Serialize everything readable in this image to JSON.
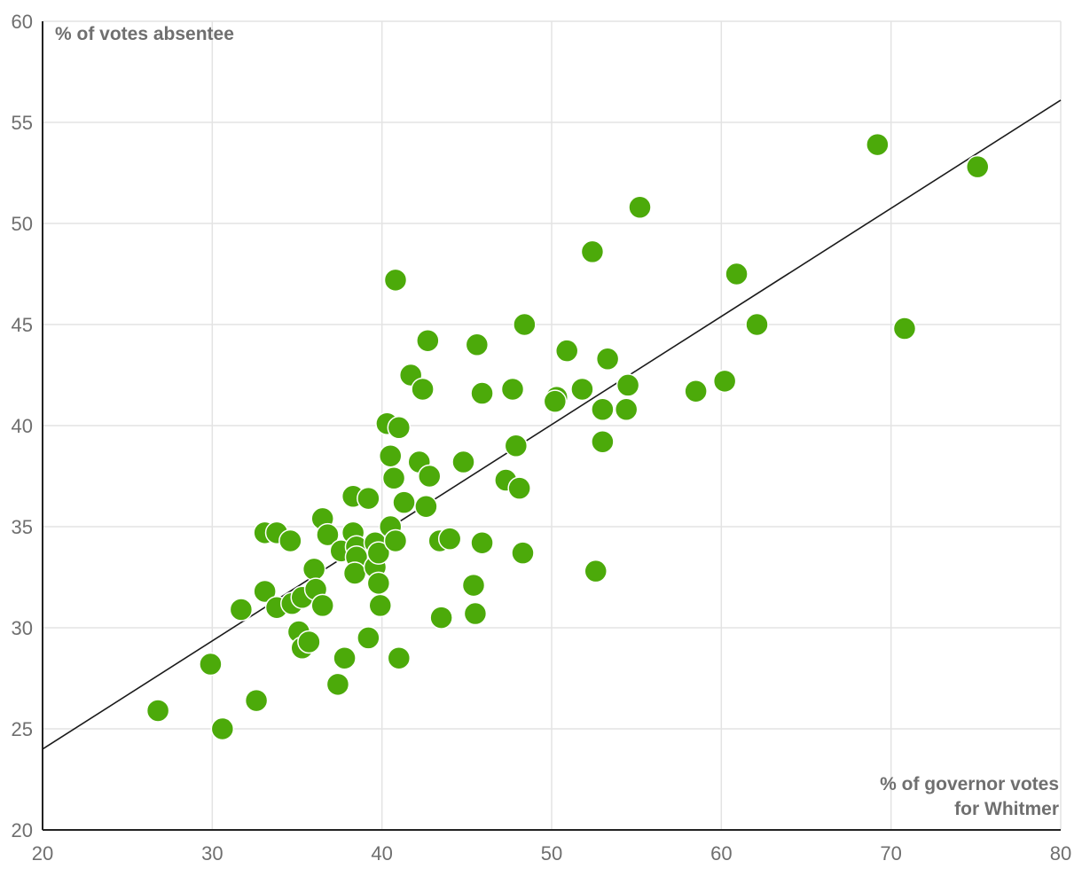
{
  "chart_data": {
    "type": "scatter",
    "xlabel_lines": [
      "% of governor votes",
      "for Whitmer"
    ],
    "ylabel": "% of votes absentee",
    "xlim": [
      20,
      80
    ],
    "ylim": [
      20,
      60
    ],
    "x_ticks": [
      20,
      30,
      40,
      50,
      60,
      70,
      80
    ],
    "y_ticks": [
      20,
      25,
      30,
      35,
      40,
      45,
      50,
      55,
      60
    ],
    "grid": true,
    "point_color": "#4caa0a",
    "trend_line": {
      "x": [
        20,
        80
      ],
      "y": [
        24.0,
        56.1
      ]
    },
    "points": [
      {
        "x": 26.8,
        "y": 25.9
      },
      {
        "x": 29.9,
        "y": 28.2
      },
      {
        "x": 30.6,
        "y": 25.0
      },
      {
        "x": 31.7,
        "y": 30.9
      },
      {
        "x": 32.6,
        "y": 26.4
      },
      {
        "x": 33.1,
        "y": 34.7
      },
      {
        "x": 33.1,
        "y": 31.8
      },
      {
        "x": 33.8,
        "y": 34.7
      },
      {
        "x": 33.8,
        "y": 31.0
      },
      {
        "x": 34.6,
        "y": 34.3
      },
      {
        "x": 34.7,
        "y": 31.2
      },
      {
        "x": 35.1,
        "y": 29.8
      },
      {
        "x": 35.3,
        "y": 31.5
      },
      {
        "x": 35.3,
        "y": 29.0
      },
      {
        "x": 35.7,
        "y": 29.3
      },
      {
        "x": 36.0,
        "y": 32.9
      },
      {
        "x": 36.1,
        "y": 31.9
      },
      {
        "x": 36.5,
        "y": 35.4
      },
      {
        "x": 36.5,
        "y": 31.1
      },
      {
        "x": 36.8,
        "y": 34.6
      },
      {
        "x": 37.4,
        "y": 27.2
      },
      {
        "x": 37.6,
        "y": 33.8
      },
      {
        "x": 37.8,
        "y": 28.5
      },
      {
        "x": 38.3,
        "y": 36.5
      },
      {
        "x": 38.3,
        "y": 34.7
      },
      {
        "x": 38.5,
        "y": 34.0
      },
      {
        "x": 38.5,
        "y": 33.5
      },
      {
        "x": 38.4,
        "y": 32.7
      },
      {
        "x": 39.2,
        "y": 36.4
      },
      {
        "x": 39.2,
        "y": 29.5
      },
      {
        "x": 39.6,
        "y": 34.2
      },
      {
        "x": 39.6,
        "y": 33.0
      },
      {
        "x": 39.8,
        "y": 33.7
      },
      {
        "x": 39.8,
        "y": 32.2
      },
      {
        "x": 39.9,
        "y": 31.1
      },
      {
        "x": 40.3,
        "y": 40.1
      },
      {
        "x": 40.5,
        "y": 38.5
      },
      {
        "x": 40.5,
        "y": 35.0
      },
      {
        "x": 40.7,
        "y": 37.4
      },
      {
        "x": 40.8,
        "y": 47.2
      },
      {
        "x": 40.8,
        "y": 34.3
      },
      {
        "x": 41.0,
        "y": 39.9
      },
      {
        "x": 41.0,
        "y": 28.5
      },
      {
        "x": 41.3,
        "y": 36.2
      },
      {
        "x": 41.7,
        "y": 42.5
      },
      {
        "x": 42.2,
        "y": 38.2
      },
      {
        "x": 42.4,
        "y": 41.8
      },
      {
        "x": 42.6,
        "y": 36.0
      },
      {
        "x": 42.7,
        "y": 44.2
      },
      {
        "x": 42.8,
        "y": 37.5
      },
      {
        "x": 43.4,
        "y": 34.3
      },
      {
        "x": 43.5,
        "y": 30.5
      },
      {
        "x": 44.0,
        "y": 34.4
      },
      {
        "x": 44.8,
        "y": 38.2
      },
      {
        "x": 45.4,
        "y": 32.1
      },
      {
        "x": 45.5,
        "y": 30.7
      },
      {
        "x": 45.6,
        "y": 44.0
      },
      {
        "x": 45.9,
        "y": 41.6
      },
      {
        "x": 45.9,
        "y": 34.2
      },
      {
        "x": 47.3,
        "y": 37.3
      },
      {
        "x": 47.7,
        "y": 41.8
      },
      {
        "x": 47.9,
        "y": 39.0
      },
      {
        "x": 48.1,
        "y": 36.9
      },
      {
        "x": 48.3,
        "y": 33.7
      },
      {
        "x": 48.4,
        "y": 45.0
      },
      {
        "x": 50.3,
        "y": 41.4
      },
      {
        "x": 50.2,
        "y": 41.2
      },
      {
        "x": 50.9,
        "y": 43.7
      },
      {
        "x": 51.8,
        "y": 41.8
      },
      {
        "x": 52.4,
        "y": 48.6
      },
      {
        "x": 52.6,
        "y": 32.8
      },
      {
        "x": 53.0,
        "y": 40.8
      },
      {
        "x": 53.0,
        "y": 39.2
      },
      {
        "x": 53.3,
        "y": 43.3
      },
      {
        "x": 54.4,
        "y": 40.8
      },
      {
        "x": 54.5,
        "y": 42.0
      },
      {
        "x": 55.2,
        "y": 50.8
      },
      {
        "x": 58.5,
        "y": 41.7
      },
      {
        "x": 60.2,
        "y": 42.2
      },
      {
        "x": 60.9,
        "y": 47.5
      },
      {
        "x": 62.1,
        "y": 45.0
      },
      {
        "x": 69.2,
        "y": 53.9
      },
      {
        "x": 70.8,
        "y": 44.8
      },
      {
        "x": 75.1,
        "y": 52.8
      }
    ]
  }
}
